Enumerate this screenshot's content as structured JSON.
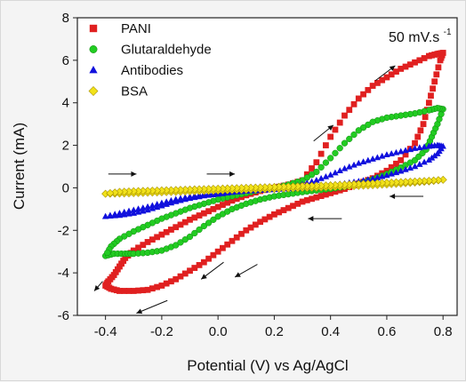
{
  "chart_data": {
    "type": "line",
    "title": "",
    "xlabel": "Potential (V) vs Ag/AgCl",
    "ylabel": "Current (mA)",
    "xlim": [
      -0.5,
      0.85
    ],
    "ylim": [
      -6,
      8
    ],
    "x_ticks": [
      -0.4,
      -0.2,
      0.0,
      0.2,
      0.4,
      0.6,
      0.8
    ],
    "x_tick_labels": [
      "-0.4",
      "-0.2",
      "0.0",
      "0.2",
      "0.4",
      "0.6",
      "0.8"
    ],
    "y_ticks": [
      -6,
      -4,
      -2,
      0,
      2,
      4,
      6,
      8
    ],
    "y_tick_labels": [
      "-6",
      "-4",
      "-2",
      "0",
      "2",
      "4",
      "6",
      "8"
    ],
    "grid": false,
    "legend_position": "top-left",
    "annotation": {
      "main": "50 mV.s",
      "superscript": "-1"
    },
    "series": [
      {
        "name": "PANI",
        "marker": "square",
        "color": "#e02020",
        "points": [
          [
            -0.4,
            -4.6
          ],
          [
            -0.38,
            -4.75
          ],
          [
            -0.35,
            -4.85
          ],
          [
            -0.3,
            -4.85
          ],
          [
            -0.25,
            -4.8
          ],
          [
            -0.2,
            -4.6
          ],
          [
            -0.15,
            -4.3
          ],
          [
            -0.1,
            -3.9
          ],
          [
            -0.05,
            -3.5
          ],
          [
            0.0,
            -3.0
          ],
          [
            0.05,
            -2.5
          ],
          [
            0.1,
            -2.0
          ],
          [
            0.15,
            -1.6
          ],
          [
            0.2,
            -1.25
          ],
          [
            0.25,
            -0.95
          ],
          [
            0.3,
            -0.65
          ],
          [
            0.35,
            -0.45
          ],
          [
            0.4,
            -0.25
          ],
          [
            0.45,
            -0.05
          ],
          [
            0.5,
            0.2
          ],
          [
            0.55,
            0.45
          ],
          [
            0.6,
            0.8
          ],
          [
            0.65,
            1.3
          ],
          [
            0.7,
            2.1
          ],
          [
            0.73,
            3.0
          ],
          [
            0.75,
            4.0
          ],
          [
            0.77,
            5.0
          ],
          [
            0.79,
            6.0
          ],
          [
            0.8,
            6.35
          ],
          [
            0.78,
            6.3
          ],
          [
            0.75,
            6.2
          ],
          [
            0.7,
            5.9
          ],
          [
            0.65,
            5.6
          ],
          [
            0.6,
            5.2
          ],
          [
            0.55,
            4.8
          ],
          [
            0.5,
            4.2
          ],
          [
            0.45,
            3.4
          ],
          [
            0.4,
            2.4
          ],
          [
            0.35,
            1.2
          ],
          [
            0.3,
            0.35
          ],
          [
            0.25,
            0.15
          ],
          [
            0.2,
            0.0
          ],
          [
            0.15,
            -0.15
          ],
          [
            0.1,
            -0.35
          ],
          [
            0.05,
            -0.6
          ],
          [
            0.0,
            -0.9
          ],
          [
            -0.05,
            -1.2
          ],
          [
            -0.1,
            -1.5
          ],
          [
            -0.15,
            -1.85
          ],
          [
            -0.2,
            -2.2
          ],
          [
            -0.25,
            -2.55
          ],
          [
            -0.3,
            -2.95
          ],
          [
            -0.33,
            -3.3
          ],
          [
            -0.35,
            -3.7
          ],
          [
            -0.37,
            -4.1
          ],
          [
            -0.39,
            -4.4
          ]
        ]
      },
      {
        "name": "Glutaraldehyde",
        "marker": "circle",
        "color": "#22cc22",
        "points": [
          [
            -0.4,
            -3.2
          ],
          [
            -0.37,
            -3.1
          ],
          [
            -0.33,
            -3.1
          ],
          [
            -0.3,
            -3.1
          ],
          [
            -0.25,
            -3.05
          ],
          [
            -0.2,
            -2.95
          ],
          [
            -0.15,
            -2.7
          ],
          [
            -0.1,
            -2.3
          ],
          [
            -0.05,
            -1.8
          ],
          [
            0.0,
            -1.35
          ],
          [
            0.05,
            -1.0
          ],
          [
            0.1,
            -0.75
          ],
          [
            0.15,
            -0.55
          ],
          [
            0.2,
            -0.4
          ],
          [
            0.25,
            -0.3
          ],
          [
            0.3,
            -0.2
          ],
          [
            0.35,
            -0.12
          ],
          [
            0.4,
            -0.05
          ],
          [
            0.45,
            0.05
          ],
          [
            0.5,
            0.2
          ],
          [
            0.55,
            0.4
          ],
          [
            0.6,
            0.65
          ],
          [
            0.65,
            0.95
          ],
          [
            0.7,
            1.3
          ],
          [
            0.74,
            1.8
          ],
          [
            0.76,
            2.4
          ],
          [
            0.78,
            3.0
          ],
          [
            0.8,
            3.7
          ],
          [
            0.78,
            3.75
          ],
          [
            0.75,
            3.65
          ],
          [
            0.7,
            3.5
          ],
          [
            0.65,
            3.4
          ],
          [
            0.6,
            3.3
          ],
          [
            0.55,
            3.1
          ],
          [
            0.5,
            2.7
          ],
          [
            0.45,
            2.1
          ],
          [
            0.4,
            1.4
          ],
          [
            0.35,
            0.75
          ],
          [
            0.3,
            0.35
          ],
          [
            0.25,
            0.15
          ],
          [
            0.2,
            0.0
          ],
          [
            0.15,
            -0.1
          ],
          [
            0.1,
            -0.25
          ],
          [
            0.05,
            -0.4
          ],
          [
            0.0,
            -0.55
          ],
          [
            -0.05,
            -0.75
          ],
          [
            -0.1,
            -0.95
          ],
          [
            -0.15,
            -1.2
          ],
          [
            -0.2,
            -1.45
          ],
          [
            -0.25,
            -1.75
          ],
          [
            -0.3,
            -2.05
          ],
          [
            -0.35,
            -2.4
          ],
          [
            -0.38,
            -2.75
          ]
        ]
      },
      {
        "name": "Antibodies",
        "marker": "triangle",
        "color": "#1010dd",
        "points": [
          [
            -0.4,
            -1.35
          ],
          [
            -0.35,
            -1.3
          ],
          [
            -0.3,
            -1.2
          ],
          [
            -0.25,
            -1.05
          ],
          [
            -0.2,
            -0.85
          ],
          [
            -0.15,
            -0.65
          ],
          [
            -0.1,
            -0.5
          ],
          [
            -0.05,
            -0.38
          ],
          [
            0.0,
            -0.3
          ],
          [
            0.05,
            -0.22
          ],
          [
            0.1,
            -0.16
          ],
          [
            0.15,
            -0.12
          ],
          [
            0.2,
            -0.08
          ],
          [
            0.25,
            -0.04
          ],
          [
            0.3,
            0.0
          ],
          [
            0.35,
            0.05
          ],
          [
            0.4,
            0.12
          ],
          [
            0.45,
            0.2
          ],
          [
            0.5,
            0.3
          ],
          [
            0.55,
            0.42
          ],
          [
            0.6,
            0.58
          ],
          [
            0.65,
            0.78
          ],
          [
            0.7,
            1.0
          ],
          [
            0.75,
            1.3
          ],
          [
            0.78,
            1.6
          ],
          [
            0.8,
            1.95
          ],
          [
            0.78,
            2.0
          ],
          [
            0.75,
            1.95
          ],
          [
            0.7,
            1.85
          ],
          [
            0.65,
            1.7
          ],
          [
            0.6,
            1.55
          ],
          [
            0.55,
            1.35
          ],
          [
            0.5,
            1.15
          ],
          [
            0.45,
            0.9
          ],
          [
            0.4,
            0.6
          ],
          [
            0.35,
            0.35
          ],
          [
            0.3,
            0.15
          ],
          [
            0.25,
            0.05
          ],
          [
            0.2,
            0.0
          ],
          [
            0.15,
            -0.05
          ],
          [
            0.1,
            -0.1
          ],
          [
            0.05,
            -0.15
          ],
          [
            0.0,
            -0.22
          ],
          [
            -0.05,
            -0.3
          ],
          [
            -0.1,
            -0.42
          ],
          [
            -0.15,
            -0.55
          ],
          [
            -0.2,
            -0.72
          ],
          [
            -0.25,
            -0.9
          ],
          [
            -0.3,
            -1.05
          ],
          [
            -0.35,
            -1.2
          ]
        ]
      },
      {
        "name": "BSA",
        "marker": "diamond",
        "color": "#f2e21a",
        "points": [
          [
            -0.4,
            -0.28
          ],
          [
            -0.35,
            -0.27
          ],
          [
            -0.3,
            -0.25
          ],
          [
            -0.25,
            -0.23
          ],
          [
            -0.2,
            -0.21
          ],
          [
            -0.15,
            -0.19
          ],
          [
            -0.1,
            -0.17
          ],
          [
            -0.05,
            -0.15
          ],
          [
            0.0,
            -0.13
          ],
          [
            0.05,
            -0.11
          ],
          [
            0.1,
            -0.09
          ],
          [
            0.15,
            -0.07
          ],
          [
            0.2,
            -0.05
          ],
          [
            0.25,
            -0.03
          ],
          [
            0.3,
            -0.01
          ],
          [
            0.35,
            0.01
          ],
          [
            0.4,
            0.03
          ],
          [
            0.45,
            0.06
          ],
          [
            0.5,
            0.09
          ],
          [
            0.55,
            0.12
          ],
          [
            0.6,
            0.16
          ],
          [
            0.65,
            0.2
          ],
          [
            0.7,
            0.25
          ],
          [
            0.75,
            0.3
          ],
          [
            0.8,
            0.38
          ],
          [
            0.75,
            0.33
          ],
          [
            0.7,
            0.3
          ],
          [
            0.65,
            0.27
          ],
          [
            0.6,
            0.24
          ],
          [
            0.55,
            0.21
          ],
          [
            0.5,
            0.18
          ],
          [
            0.45,
            0.15
          ],
          [
            0.4,
            0.12
          ],
          [
            0.35,
            0.1
          ],
          [
            0.3,
            0.08
          ],
          [
            0.25,
            0.06
          ],
          [
            0.2,
            0.04
          ],
          [
            0.15,
            0.02
          ],
          [
            0.1,
            0.0
          ],
          [
            0.05,
            -0.02
          ],
          [
            0.0,
            -0.04
          ],
          [
            -0.05,
            -0.06
          ],
          [
            -0.1,
            -0.08
          ],
          [
            -0.15,
            -0.1
          ],
          [
            -0.2,
            -0.12
          ],
          [
            -0.25,
            -0.14
          ],
          [
            -0.3,
            -0.16
          ],
          [
            -0.35,
            -0.19
          ]
        ]
      }
    ],
    "arrows": [
      {
        "from": [
          -0.39,
          0.65
        ],
        "to": [
          -0.29,
          0.65
        ]
      },
      {
        "from": [
          -0.04,
          0.65
        ],
        "to": [
          0.06,
          0.65
        ]
      },
      {
        "from": [
          0.34,
          2.2
        ],
        "to": [
          0.41,
          2.95
        ]
      },
      {
        "from": [
          0.56,
          5.05
        ],
        "to": [
          0.63,
          5.75
        ]
      },
      {
        "from": [
          0.73,
          -0.4
        ],
        "to": [
          0.61,
          -0.4
        ]
      },
      {
        "from": [
          0.44,
          -1.45
        ],
        "to": [
          0.32,
          -1.45
        ]
      },
      {
        "from": [
          0.02,
          -3.5
        ],
        "to": [
          -0.06,
          -4.3
        ]
      },
      {
        "from": [
          0.14,
          -3.6
        ],
        "to": [
          0.06,
          -4.2
        ]
      },
      {
        "from": [
          -0.18,
          -5.3
        ],
        "to": [
          -0.29,
          -5.9
        ]
      },
      {
        "from": [
          -0.41,
          -4.4
        ],
        "to": [
          -0.44,
          -4.85
        ]
      }
    ]
  }
}
